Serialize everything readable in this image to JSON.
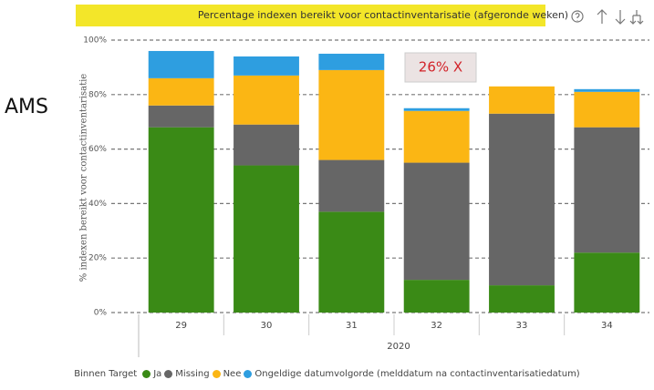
{
  "side_label": "AMS",
  "chart_data": {
    "type": "stacked-bar",
    "title": "Percentage indexen bereikt voor contactinventarisatie (afgeronde weken)",
    "ylabel": "% indexen bereikt voor contactinventarisatie",
    "xgroup_label": "2020",
    "annotation": "26% X",
    "legend_title": "Binnen Target",
    "categories": [
      "29",
      "30",
      "31",
      "32",
      "33",
      "34"
    ],
    "series": [
      {
        "name": "Ja",
        "color": "#3a8a16",
        "values": [
          68,
          54,
          37,
          12,
          10,
          22
        ]
      },
      {
        "name": "Missing",
        "color": "#666666",
        "values": [
          8,
          15,
          19,
          43,
          63,
          46
        ]
      },
      {
        "name": "Nee",
        "color": "#fbb614",
        "values": [
          10,
          18,
          33,
          19,
          10,
          13
        ]
      },
      {
        "name": "Ongeldige datumvolgorde (melddatum na contactinventarisatiedatum)",
        "color": "#2e9ee0",
        "values": [
          10,
          7,
          6,
          1,
          0,
          1
        ]
      }
    ],
    "ylim": [
      0,
      100
    ],
    "yticks": [
      {
        "value": 0,
        "label": "0%"
      },
      {
        "value": 20,
        "label": "20%"
      },
      {
        "value": 40,
        "label": "40%"
      },
      {
        "value": 60,
        "label": "60%"
      },
      {
        "value": 80,
        "label": "80%"
      },
      {
        "value": 100,
        "label": "100%"
      }
    ],
    "grid": true
  }
}
